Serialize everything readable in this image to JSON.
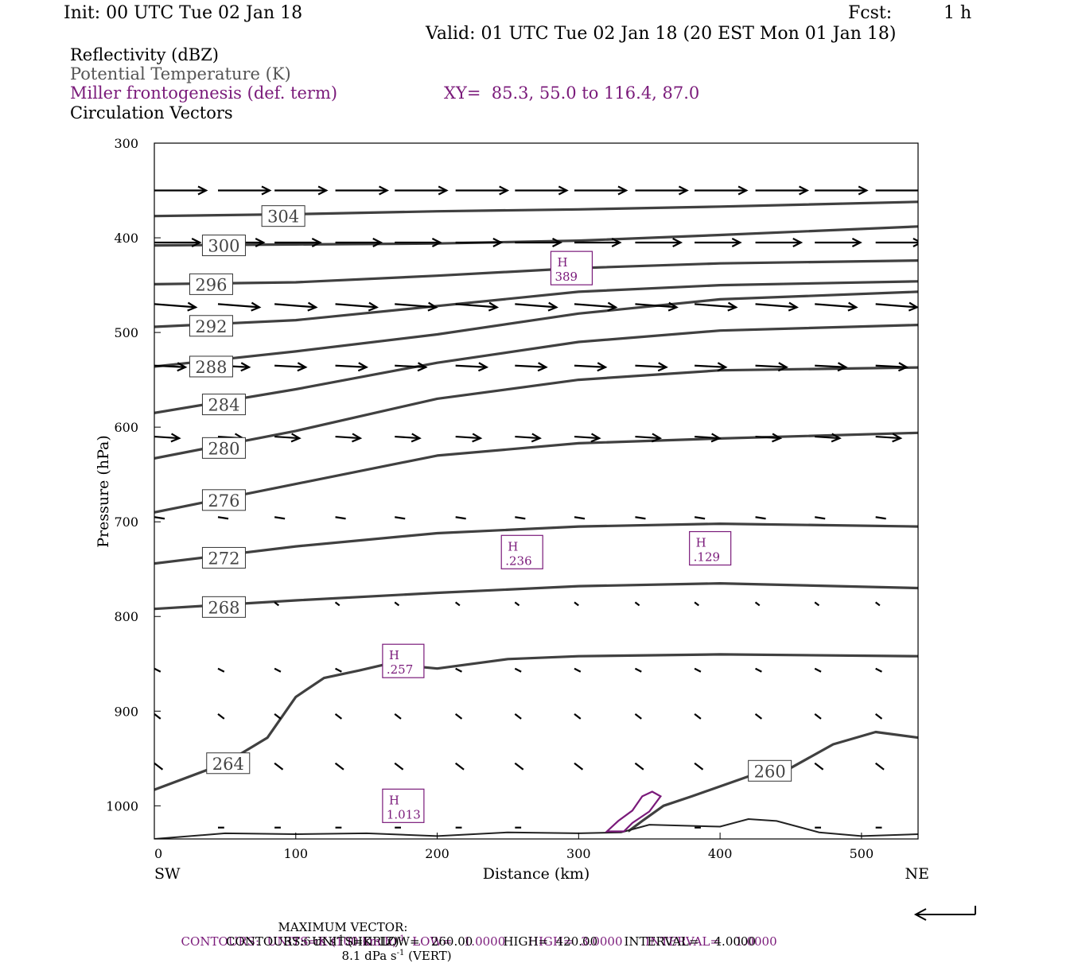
{
  "header": {
    "init": "Init: 00 UTC Tue 02 Jan 18",
    "fcst_label": "Fcst:",
    "fcst_value": "1 h",
    "valid": "Valid: 01 UTC Tue 02 Jan 18 (20 EST Mon 01 Jan 18)"
  },
  "legend": {
    "line1": "Reflectivity (dBZ)",
    "line2": "Potential Temperature (K)",
    "line3": "Miller frontogenesis (def. term)",
    "xy": "XY=  85.3, 55.0 to 116.4, 87.0",
    "line4": "Circulation Vectors"
  },
  "colors": {
    "theta": "#404040",
    "fronto": "#7a1a7a",
    "vector": "#000000",
    "text_gray": "#555555"
  },
  "chart_data": {
    "type": "line",
    "title": "",
    "xlabel": "Distance (km)",
    "ylabel": "Pressure (hPa)",
    "xlim": [
      0,
      540
    ],
    "ylim": [
      1035,
      300
    ],
    "x_ticks": [
      0,
      100,
      200,
      300,
      400,
      500
    ],
    "y_ticks": [
      300,
      400,
      500,
      600,
      700,
      800,
      900,
      1000
    ],
    "x_end_labels": {
      "left": "SW",
      "right": "NE"
    },
    "series": [
      {
        "name": "304",
        "label_at": [
          76,
          377
        ],
        "points": [
          [
            0,
            377
          ],
          [
            100,
            375
          ],
          [
            200,
            372
          ],
          [
            300,
            370
          ],
          [
            400,
            367
          ],
          [
            540,
            362
          ]
        ]
      },
      {
        "name": "300",
        "label_at": [
          34,
          408
        ],
        "points": [
          [
            0,
            408
          ],
          [
            100,
            407
          ],
          [
            200,
            406
          ],
          [
            300,
            403
          ],
          [
            400,
            397
          ],
          [
            540,
            388
          ]
        ]
      },
      {
        "name": "296",
        "label_at": [
          25,
          449
        ],
        "points": [
          [
            0,
            449
          ],
          [
            100,
            447
          ],
          [
            200,
            440
          ],
          [
            300,
            432
          ],
          [
            400,
            427
          ],
          [
            540,
            424
          ]
        ]
      },
      {
        "name": "292",
        "label_at": [
          25,
          493
        ],
        "points": [
          [
            0,
            494
          ],
          [
            100,
            487
          ],
          [
            200,
            472
          ],
          [
            300,
            457
          ],
          [
            400,
            450
          ],
          [
            540,
            446
          ]
        ]
      },
      {
        "name": "288",
        "label_at": [
          25,
          536
        ],
        "points": [
          [
            0,
            536
          ],
          [
            100,
            520
          ],
          [
            200,
            502
          ],
          [
            300,
            480
          ],
          [
            400,
            465
          ],
          [
            540,
            457
          ]
        ]
      },
      {
        "name": "284",
        "label_at": [
          34,
          576
        ],
        "points": [
          [
            0,
            585
          ],
          [
            100,
            560
          ],
          [
            200,
            532
          ],
          [
            300,
            510
          ],
          [
            400,
            498
          ],
          [
            540,
            492
          ]
        ]
      },
      {
        "name": "280",
        "label_at": [
          34,
          622
        ],
        "points": [
          [
            0,
            633
          ],
          [
            100,
            604
          ],
          [
            200,
            570
          ],
          [
            300,
            550
          ],
          [
            400,
            540
          ],
          [
            540,
            537
          ]
        ]
      },
      {
        "name": "276",
        "label_at": [
          34,
          677
        ],
        "points": [
          [
            0,
            690
          ],
          [
            100,
            660
          ],
          [
            200,
            630
          ],
          [
            300,
            617
          ],
          [
            400,
            612
          ],
          [
            540,
            606
          ]
        ]
      },
      {
        "name": "272",
        "label_at": [
          34,
          738
        ],
        "points": [
          [
            0,
            744
          ],
          [
            100,
            726
          ],
          [
            200,
            712
          ],
          [
            300,
            705
          ],
          [
            400,
            702
          ],
          [
            540,
            705
          ]
        ]
      },
      {
        "name": "268",
        "label_at": [
          34,
          790
        ],
        "points": [
          [
            0,
            792
          ],
          [
            100,
            783
          ],
          [
            200,
            775
          ],
          [
            300,
            768
          ],
          [
            400,
            765
          ],
          [
            540,
            770
          ]
        ]
      },
      {
        "name": "264",
        "label_at": [
          37,
          955
        ],
        "points": [
          [
            0,
            983
          ],
          [
            50,
            955
          ],
          [
            80,
            928
          ],
          [
            100,
            885
          ],
          [
            120,
            865
          ],
          [
            145,
            857
          ],
          [
            165,
            850
          ],
          [
            200,
            855
          ],
          [
            250,
            845
          ],
          [
            300,
            842
          ],
          [
            400,
            840
          ],
          [
            540,
            842
          ]
        ]
      },
      {
        "name": "260",
        "label_at": [
          420,
          963
        ],
        "points": [
          [
            335,
            1027
          ],
          [
            345,
            1016
          ],
          [
            360,
            1000
          ],
          [
            380,
            990
          ],
          [
            420,
            969
          ],
          [
            450,
            960
          ],
          [
            480,
            935
          ],
          [
            510,
            922
          ],
          [
            540,
            928
          ]
        ]
      }
    ],
    "ground": [
      [
        0,
        1035
      ],
      [
        50,
        1029
      ],
      [
        100,
        1030
      ],
      [
        150,
        1029
      ],
      [
        200,
        1032
      ],
      [
        250,
        1028
      ],
      [
        300,
        1029
      ],
      [
        330,
        1028
      ],
      [
        350,
        1020
      ],
      [
        400,
        1022
      ],
      [
        420,
        1014
      ],
      [
        440,
        1016
      ],
      [
        470,
        1028
      ],
      [
        500,
        1032
      ],
      [
        540,
        1030
      ]
    ],
    "frontogenesis_maxima": [
      {
        "label": "H",
        "value": "389",
        "x": 295,
        "p": 432
      },
      {
        "label": "H",
        "value": ".236",
        "x": 260,
        "p": 732
      },
      {
        "label": "H",
        "value": ".129",
        "x": 393,
        "p": 728
      },
      {
        "label": "H",
        "value": ".257",
        "x": 176,
        "p": 847
      },
      {
        "label": "H",
        "value": "1.013",
        "x": 176,
        "p": 1000
      }
    ],
    "frontogenesis_contour": [
      [
        320,
        1027
      ],
      [
        328,
        1016
      ],
      [
        338,
        1005
      ],
      [
        345,
        990
      ],
      [
        352,
        985
      ],
      [
        358,
        990
      ],
      [
        350,
        1006
      ],
      [
        338,
        1018
      ],
      [
        332,
        1027
      ]
    ],
    "vectors": [
      {
        "p": 350,
        "u": 25,
        "w": 0,
        "x": [
          0,
          45,
          85,
          128,
          170,
          213,
          255,
          297,
          340,
          382,
          425,
          467,
          510
        ]
      },
      {
        "p": 405,
        "u": 22,
        "w": 0,
        "x": [
          0,
          45,
          85,
          128,
          170,
          213,
          255,
          297,
          340,
          382,
          425,
          467,
          510
        ]
      },
      {
        "p": 470,
        "u": 20,
        "w": 1,
        "x": [
          0,
          45,
          85,
          128,
          170,
          213,
          255,
          297,
          340,
          382,
          425,
          467,
          510
        ]
      },
      {
        "p": 535,
        "u": 15,
        "w": 0.5,
        "x": [
          0,
          45,
          85,
          128,
          170,
          213,
          255,
          297,
          340,
          382,
          425,
          467,
          510
        ]
      },
      {
        "p": 610,
        "u": 12,
        "w": 0.5,
        "x": [
          0,
          45,
          85,
          128,
          170,
          213,
          255,
          297,
          340,
          382,
          425,
          467,
          510
        ]
      },
      {
        "p": 695,
        "u": 5,
        "w": 0.5,
        "x": [
          0,
          45,
          85,
          128,
          170,
          213,
          255,
          297,
          340,
          382,
          425,
          467,
          510
        ]
      },
      {
        "p": 785,
        "u": 2,
        "w": 1,
        "x": [
          45,
          85,
          128,
          170,
          213,
          255,
          297,
          340,
          382,
          425,
          467,
          510
        ]
      },
      {
        "p": 855,
        "u": 3,
        "w": 1,
        "x": [
          0,
          45,
          85,
          128,
          170,
          213,
          255,
          297,
          340,
          382,
          425,
          467,
          510
        ]
      },
      {
        "p": 903,
        "u": 3,
        "w": 1.5,
        "x": [
          0,
          45,
          85,
          128,
          170,
          213,
          255,
          297,
          340,
          382,
          425,
          467,
          510
        ]
      },
      {
        "p": 955,
        "u": 4,
        "w": 2,
        "x": [
          0,
          45,
          85,
          128,
          170,
          213,
          255,
          297,
          340,
          382,
          425,
          467,
          510
        ]
      },
      {
        "p": 1023,
        "u": 3,
        "w": 0,
        "x": [
          45,
          85,
          128,
          170,
          213,
          255,
          382,
          467,
          510
        ]
      }
    ]
  },
  "footer": {
    "max_vector_label": "MAXIMUM VECTOR:",
    "max_vector_horiz": "37.6 m s",
    "max_vector_horiz_exp": "-1",
    "max_vector_horiz_unit": "(HORIZ)",
    "max_vector_vert": "8.1 dPa s",
    "max_vector_vert_exp": "-1",
    "max_vector_vert_unit": "(VERT)",
    "contours1_a": "CONTOURS:  UNITS=K (100 km h)",
    "contours1_exp": "-1",
    "contours1_b": "LOW=   1.0000      HIGH=  3.0000      INTERVAL=    1.0000",
    "contours2": "CONTOURS:  UNITS=K  LOW=   260.00        HIGH=  420.00       INTERVAL=    4.0000"
  }
}
